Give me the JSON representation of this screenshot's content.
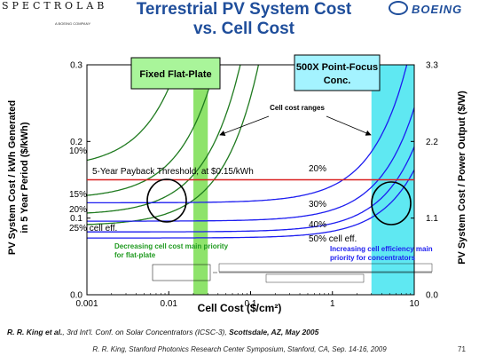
{
  "header": {
    "logo_left": "SPECTROLAB",
    "logo_left_sub": "A BOEING COMPANY",
    "title_line1": "Terrestrial PV System Cost",
    "title_line2": "vs. Cell Cost",
    "brand_right": "BOEING"
  },
  "colors": {
    "title_blue": "#1f4e9b",
    "flatplate_band": "#8ee36b",
    "concentrator_band": "#5fe8f2",
    "threshold_line": "#d92020",
    "flatplate_curves": "#1f7a1f",
    "concentrator_curves": "#1d1df0",
    "label_box_green": "#a9f59a",
    "label_box_blue": "#a4f3ff"
  },
  "chart_data": {
    "type": "line",
    "xlabel": "Cell Cost ($/cm²)",
    "ylabel_left_line1": "PV System Cost / kWh Generated",
    "ylabel_left_line2": "in 5 Year Period  ($/kWh)",
    "ylabel_right": "PV System Cost / Power Output  ($/W)",
    "x_scale": "log",
    "xlim": [
      0.001,
      10
    ],
    "ylim": [
      0,
      0.3
    ],
    "right_ylim": [
      0,
      3.3
    ],
    "x_ticks": [
      0.001,
      0.01,
      0.1,
      1,
      10
    ],
    "x_tick_labels": [
      "0.001",
      "0.01",
      "0.1",
      "1",
      "10"
    ],
    "y_ticks": [
      0.0,
      0.1,
      0.2,
      0.3
    ],
    "y_tick_labels": [
      "0.0",
      "0.1",
      "0.2",
      "0.3"
    ],
    "right_y_ticks": [
      0.0,
      1.1,
      2.2,
      3.3
    ],
    "right_y_tick_labels": [
      "0.0",
      "1.1",
      "2.2",
      "3.3"
    ],
    "grid": false,
    "threshold": {
      "y": 0.15,
      "label": "5-Year Payback Threshold, at $0.15/kWh"
    },
    "bands": [
      {
        "name": "Fixed Flat-Plate",
        "x_range": [
          0.02,
          0.03
        ]
      },
      {
        "name": "500X Point-Focus Conc.",
        "x_range": [
          3,
          10
        ]
      }
    ],
    "flatplate_series": [
      {
        "label": "10%",
        "base": 0.165,
        "k": 10.48
      },
      {
        "label": "15%",
        "base": 0.125,
        "k": 4.65
      },
      {
        "label": "20%",
        "base": 0.104,
        "k": 2.62
      },
      {
        "label": "25% cell eff.",
        "base": 0.09,
        "k": 1.68
      }
    ],
    "concentrator_series": [
      {
        "label": "20%",
        "base": 0.12,
        "k": 0.0222
      },
      {
        "label": "30%",
        "base": 0.096,
        "k": 0.0148
      },
      {
        "label": "40%",
        "base": 0.082,
        "k": 0.0111
      },
      {
        "label": "50% cell eff.",
        "base": 0.074,
        "k": 0.0089
      }
    ],
    "annotations": {
      "flatplate_box": "Fixed Flat-Plate",
      "conc_box_line1": "500X Point-Focus",
      "conc_box_line2": "Conc.",
      "cell_cost_ranges": "Cell cost ranges",
      "flat_priority_line1": "Decreasing cell cost main priority",
      "flat_priority_line2": "for flat-plate",
      "conc_priority_line1": "Increasing cell efficiency main",
      "conc_priority_line2": "priority for concentrators"
    }
  },
  "reference": {
    "authors": "R. R. King et al.",
    "text": ", 3rd Int'l. Conf. on Solar Concentrators (ICSC-3), ",
    "place": "Scottsdale, AZ, May 2005"
  },
  "footer": {
    "text": "R. R. King, Stanford Photonics Research Center Symposium, Stanford, CA, Sep. 14-16, 2009",
    "page": "71"
  }
}
